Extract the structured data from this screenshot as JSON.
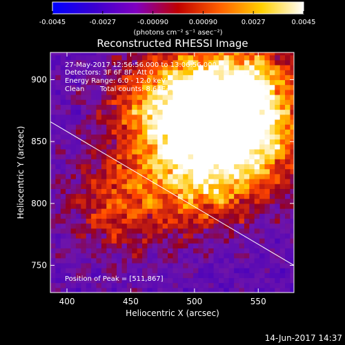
{
  "colorbar": {
    "ticks": [
      "-0.0045",
      "-0.0027",
      "-0.00090",
      "0.00090",
      "0.0027",
      "0.0045"
    ],
    "tick_values": [
      -0.0045,
      -0.0027,
      -0.0009,
      0.0009,
      0.0027,
      0.0045
    ],
    "range": [
      -0.0045,
      0.0045
    ],
    "unit_label": "(photons cm⁻² s⁻¹ asec⁻²)",
    "colors": [
      "#0000ff",
      "#3a00d0",
      "#8000c0",
      "#c00000",
      "#ff6000",
      "#ffd000",
      "#ffffff"
    ]
  },
  "chart_data": {
    "type": "heatmap",
    "title": "Reconstructed RHESSI Image",
    "xlabel": "Heliocentric X (arcsec)",
    "ylabel": "Heliocentric Y (arcsec)",
    "xlim": [
      387,
      578
    ],
    "ylim": [
      728,
      922
    ],
    "xticks": [
      400,
      450,
      500,
      550
    ],
    "yticks": [
      750,
      800,
      850,
      900
    ],
    "annotations": {
      "time_range": "27-May-2017 12:56:56.000 to 13:06:56.000",
      "detectors": "Detectors: 3F 6F 8F, Att 0",
      "energy_range": "Energy Range: 6.0 - 12.0 keV",
      "clean": "Clean",
      "total_counts": "Total counts: 8.64E+03",
      "peak": "Position of Peak = [511,867]"
    },
    "peak_position": [
      511,
      867
    ],
    "limb_line": [
      [
        387,
        866
      ],
      [
        578,
        750
      ]
    ],
    "sources": [
      {
        "x": 511,
        "y": 867,
        "intensity": 1.0
      },
      {
        "x": 540,
        "y": 890,
        "intensity": 0.7
      },
      {
        "x": 470,
        "y": 880,
        "intensity": 0.55
      },
      {
        "x": 505,
        "y": 820,
        "intensity": 0.6
      },
      {
        "x": 440,
        "y": 800,
        "intensity": 0.45
      },
      {
        "x": 560,
        "y": 840,
        "intensity": 0.35
      }
    ]
  },
  "footer": {
    "timestamp": "14-Jun-2017 14:37"
  }
}
